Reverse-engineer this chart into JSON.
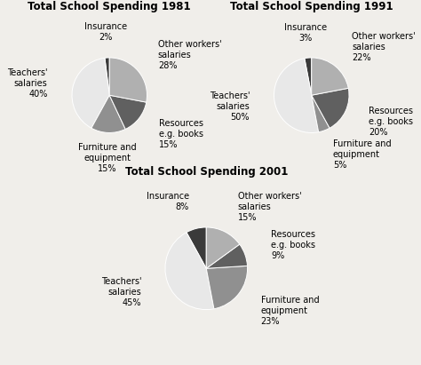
{
  "charts": [
    {
      "title": "Total School Spending 1981",
      "labels": [
        "Insurance",
        "Teachers'\nsalaries",
        "Furniture and\nequipment",
        "Resources\ne.g. books",
        "Other workers'\nsalaries"
      ],
      "pcts": [
        "2%",
        "40%",
        "15%",
        "15%",
        "28%"
      ],
      "values": [
        2,
        40,
        15,
        15,
        28
      ],
      "colors": [
        "#3a3a3a",
        "#e8e8e8",
        "#909090",
        "#606060",
        "#b0b0b0"
      ],
      "startangle": 90
    },
    {
      "title": "Total School Spending 1991",
      "labels": [
        "Insurance",
        "Teachers'\nsalaries",
        "Furniture and\nequipment",
        "Resources\ne.g. books",
        "Other workers'\nsalaries"
      ],
      "pcts": [
        "3%",
        "50%",
        "5%",
        "20%",
        "22%"
      ],
      "values": [
        3,
        50,
        5,
        20,
        22
      ],
      "colors": [
        "#3a3a3a",
        "#e8e8e8",
        "#909090",
        "#606060",
        "#b0b0b0"
      ],
      "startangle": 90
    },
    {
      "title": "Total School Spending 2001",
      "labels": [
        "Insurance",
        "Teachers'\nsalaries",
        "Furniture and\nequipment",
        "Resources\ne.g. books",
        "Other workers'\nsalaries"
      ],
      "pcts": [
        "8%",
        "45%",
        "23%",
        "9%",
        "15%"
      ],
      "values": [
        8,
        45,
        23,
        9,
        15
      ],
      "colors": [
        "#3a3a3a",
        "#e8e8e8",
        "#909090",
        "#606060",
        "#b0b0b0"
      ],
      "startangle": 90
    }
  ],
  "bg_color": "#f0eeea",
  "title_fontsize": 8.5,
  "label_fontsize": 7.0
}
